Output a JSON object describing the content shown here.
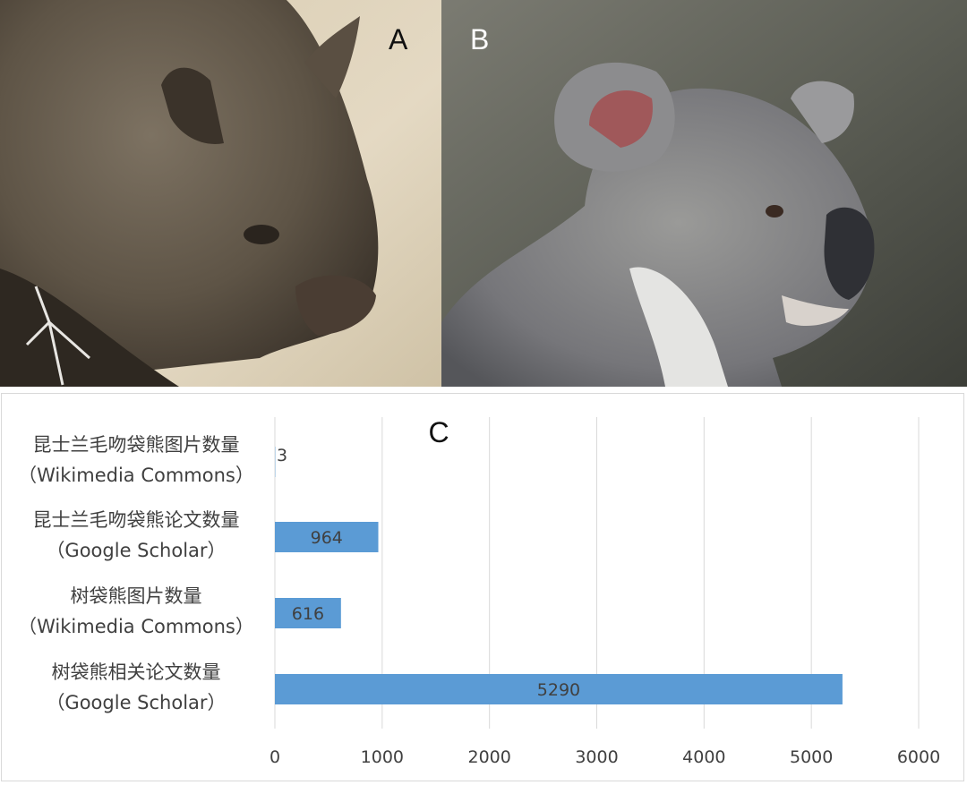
{
  "panels": {
    "a": {
      "letter": "A"
    },
    "b": {
      "letter": "B"
    }
  },
  "chart_data": {
    "type": "bar",
    "orientation": "horizontal",
    "title": "C",
    "categories": [
      [
        "昆士兰毛吻袋熊图片数量",
        "（Wikimedia Commons）"
      ],
      [
        "昆士兰毛吻袋熊论文数量",
        "（Google Scholar）"
      ],
      [
        "树袋熊图片数量",
        "（Wikimedia Commons）"
      ],
      [
        "树袋熊相关论文数量",
        "（Google Scholar）"
      ]
    ],
    "values": [
      3,
      964,
      616,
      5290
    ],
    "xlim": [
      0,
      6000
    ],
    "xticks": [
      "0",
      "1000",
      "2000",
      "3000",
      "4000",
      "5000",
      "6000"
    ],
    "grid": "vertical",
    "bar_color": "#5b9bd5",
    "legend": "none"
  }
}
